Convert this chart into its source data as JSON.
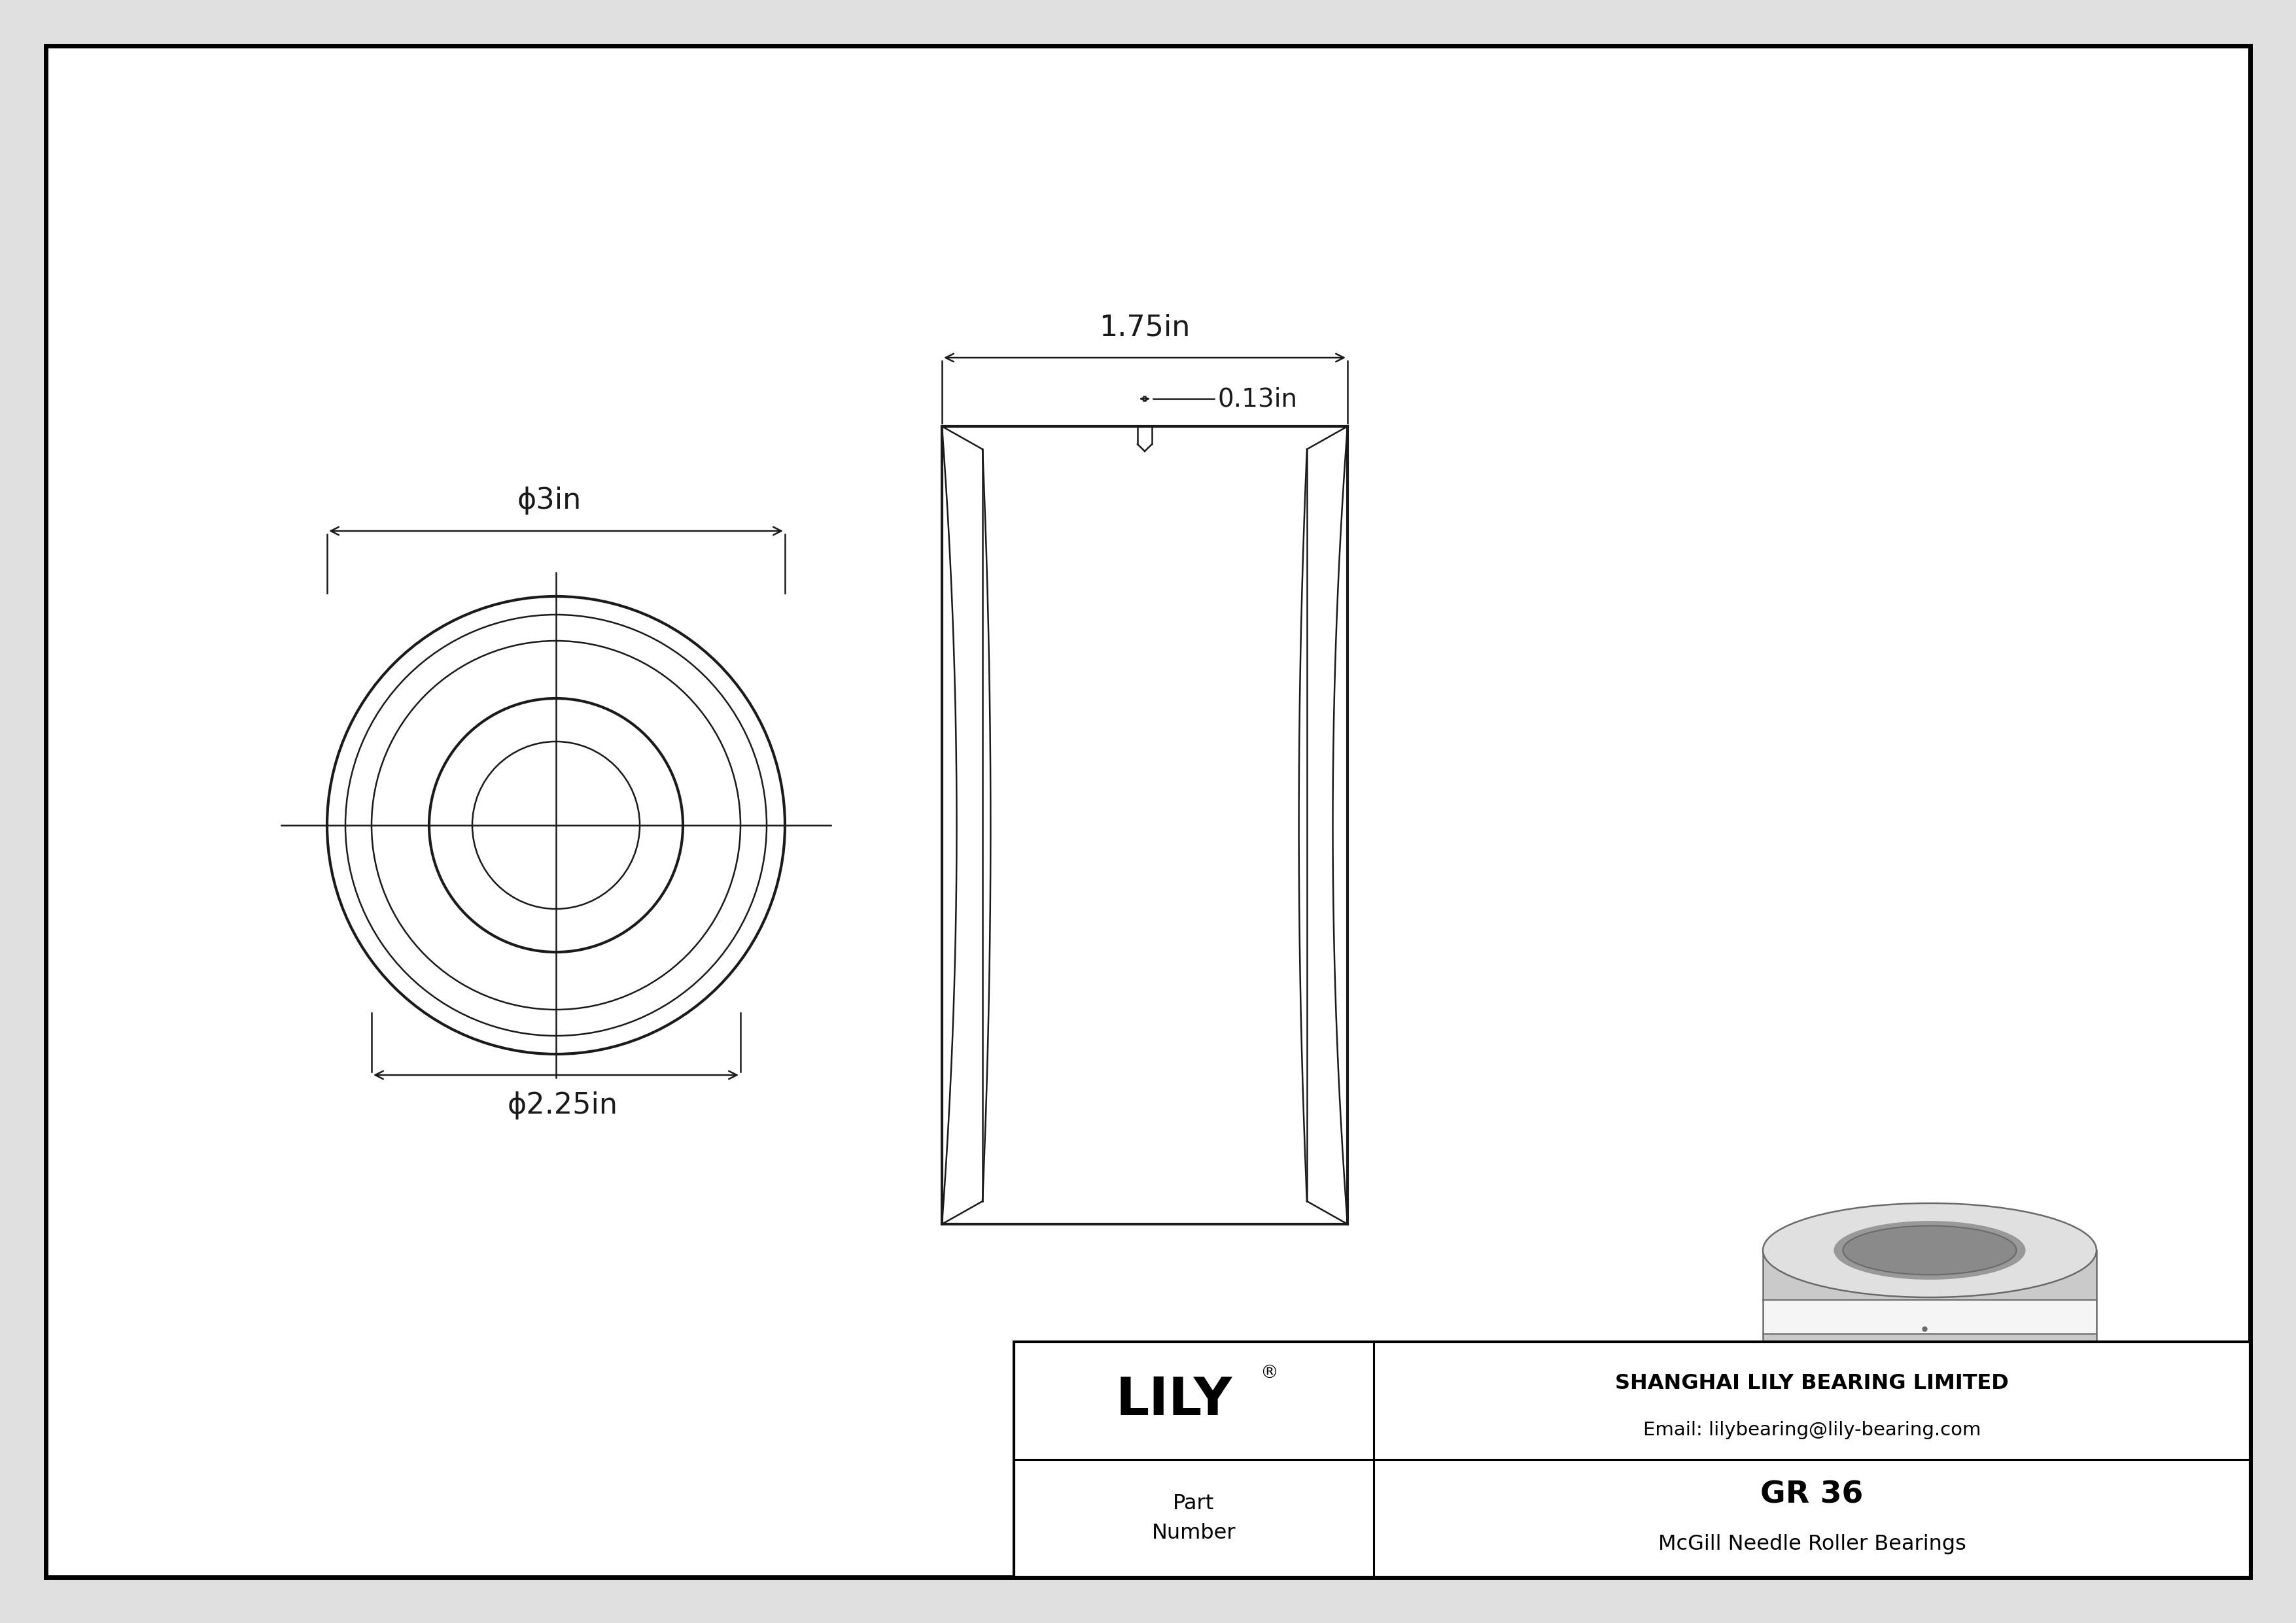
{
  "bg_color": "#e0e0e0",
  "drawing_bg": "#ffffff",
  "line_color": "#1a1a1a",
  "dim_outer": "ϕ3in",
  "dim_inner": "ϕ2.25in",
  "dim_width": "1.75in",
  "dim_groove": "0.13in",
  "title": "GR 36",
  "subtitle": "McGill Needle Roller Bearings",
  "company": "SHANGHAI LILY BEARING LIMITED",
  "email": "Email: lilybearing@lily-bearing.com",
  "part_label": "Part\nNumber",
  "lily_text": "LILY"
}
